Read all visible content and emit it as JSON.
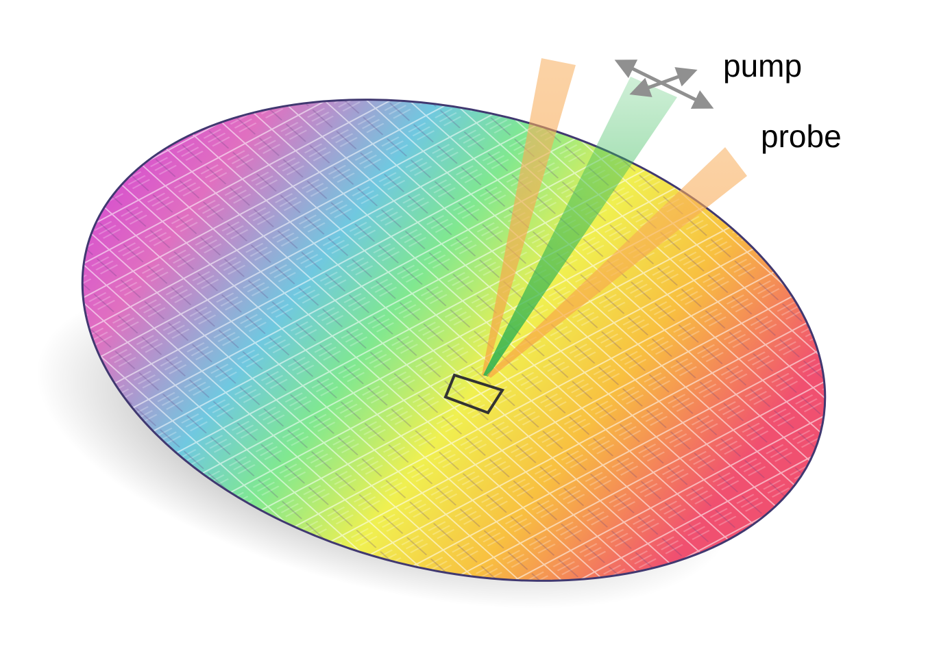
{
  "labels": {
    "pump": "pump",
    "probe": "probe"
  }
}
